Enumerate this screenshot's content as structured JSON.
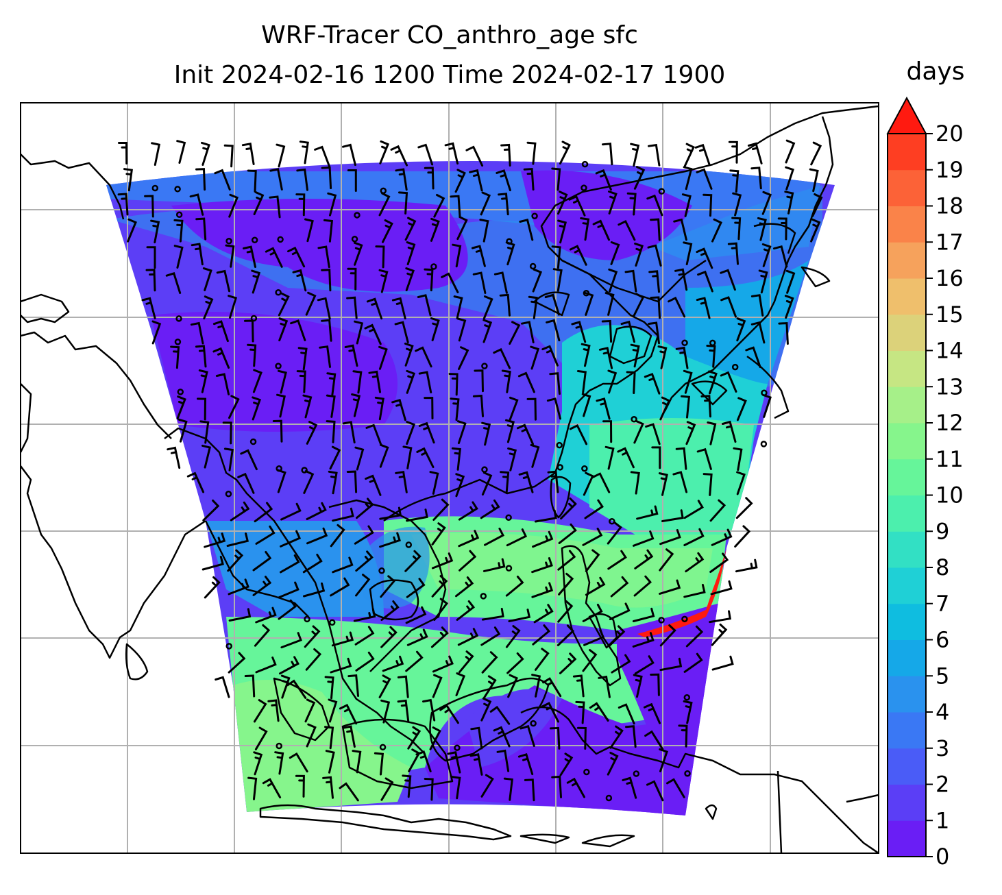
{
  "title": {
    "line1": "WRF-Tracer CO_anthro_age sfc",
    "line2": "Init 2024-02-16 1200 Time 2024-02-17 1900"
  },
  "colorbar": {
    "label": "days",
    "ticks": [
      "0",
      "1",
      "2",
      "3",
      "4",
      "5",
      "6",
      "7",
      "8",
      "9",
      "10",
      "11",
      "12",
      "13",
      "14",
      "15",
      "16",
      "17",
      "18",
      "19",
      "20"
    ],
    "extend": "max",
    "colors": [
      "#6a1ef5",
      "#5b3ef6",
      "#4a5cf7",
      "#3a78f4",
      "#2a92ee",
      "#15a8e8",
      "#0fbde0",
      "#1fd0d6",
      "#32e0c4",
      "#4cefad",
      "#66f59a",
      "#86f58c",
      "#a6f089",
      "#c6e683",
      "#dcd27a",
      "#efbf6c",
      "#f6a25c",
      "#fa8349",
      "#fc6237",
      "#fe3e22",
      "#ff1a10"
    ]
  },
  "map": {
    "field": "CO_anthro_age",
    "level": "sfc",
    "units": "days",
    "gridlines": true,
    "coastlines": true,
    "wind_barbs": true
  }
}
